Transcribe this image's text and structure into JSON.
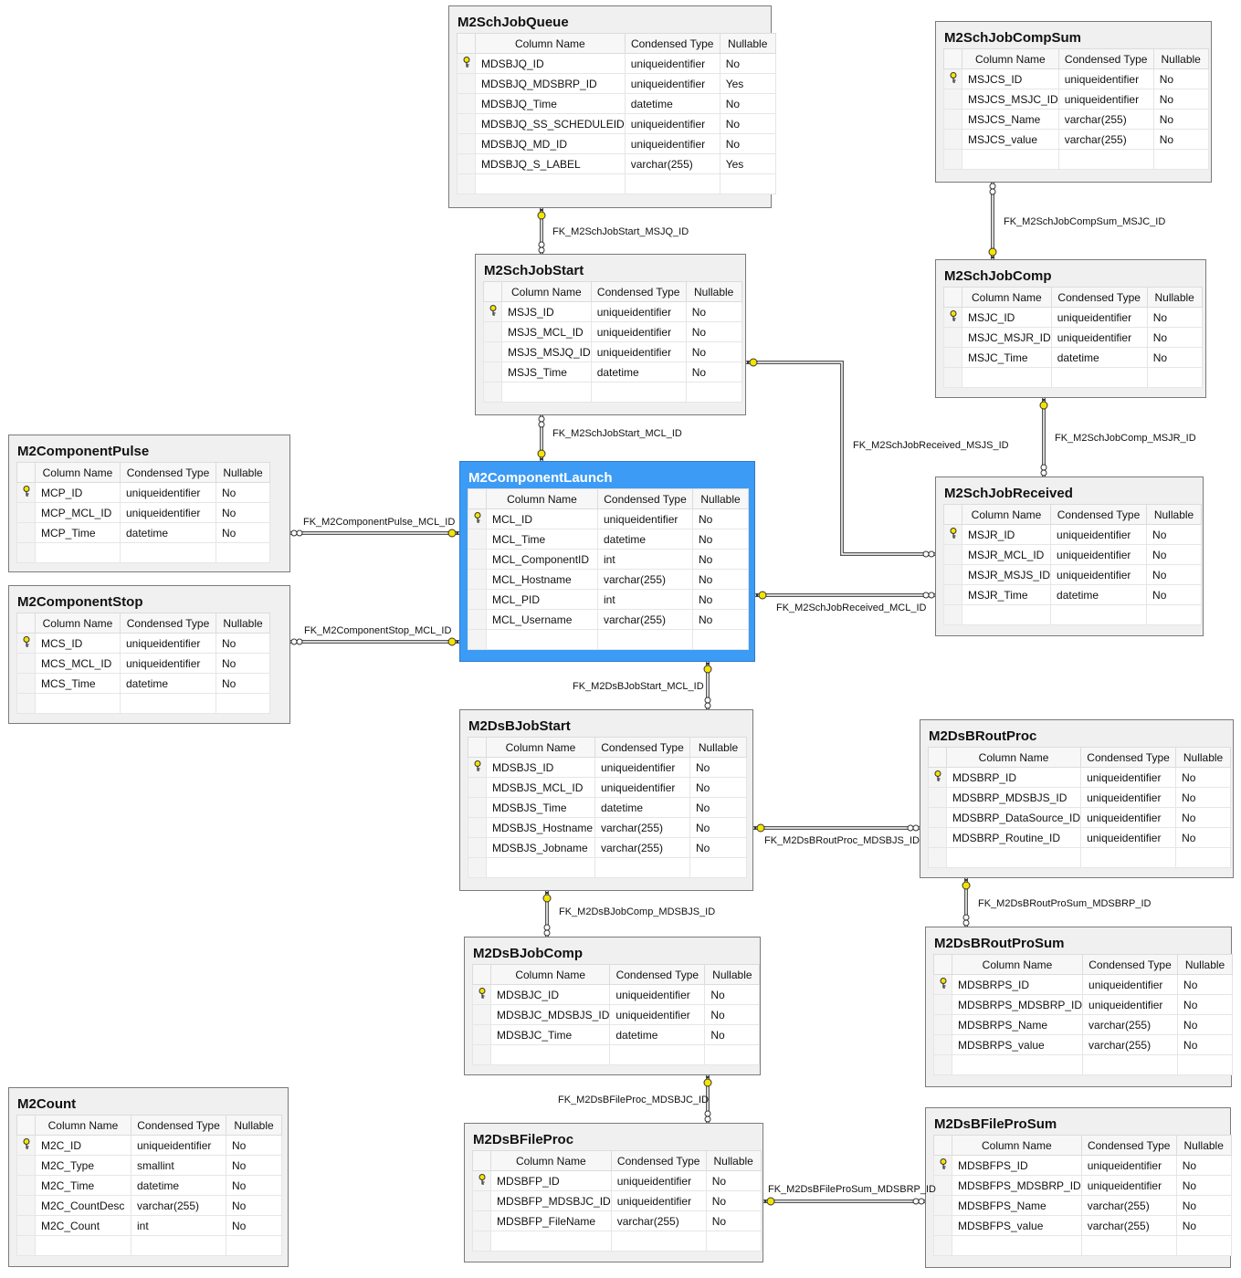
{
  "headers": [
    "Column Name",
    "Condensed Type",
    "Nullable"
  ],
  "colors": {
    "selected_table": "#3c9bf5",
    "key": "#f5e400"
  },
  "tables": [
    {
      "name": "M2SchJobQueue",
      "rows": [
        [
          "MDSBJQ_ID",
          "uniqueidentifier",
          "No",
          true
        ],
        [
          "MDSBJQ_MDSBRP_ID",
          "uniqueidentifier",
          "Yes",
          false
        ],
        [
          "MDSBJQ_Time",
          "datetime",
          "No",
          false
        ],
        [
          "MDSBJQ_SS_SCHEDULEID",
          "uniqueidentifier",
          "No",
          false
        ],
        [
          "MDSBJQ_MD_ID",
          "uniqueidentifier",
          "No",
          false
        ],
        [
          "MDSBJQ_S_LABEL",
          "varchar(255)",
          "Yes",
          false
        ]
      ]
    },
    {
      "name": "M2SchJobCompSum",
      "rows": [
        [
          "MSJCS_ID",
          "uniqueidentifier",
          "No",
          true
        ],
        [
          "MSJCS_MSJC_ID",
          "uniqueidentifier",
          "No",
          false
        ],
        [
          "MSJCS_Name",
          "varchar(255)",
          "No",
          false
        ],
        [
          "MSJCS_value",
          "varchar(255)",
          "No",
          false
        ]
      ]
    },
    {
      "name": "M2SchJobStart",
      "rows": [
        [
          "MSJS_ID",
          "uniqueidentifier",
          "No",
          true
        ],
        [
          "MSJS_MCL_ID",
          "uniqueidentifier",
          "No",
          false
        ],
        [
          "MSJS_MSJQ_ID",
          "uniqueidentifier",
          "No",
          false
        ],
        [
          "MSJS_Time",
          "datetime",
          "No",
          false
        ]
      ]
    },
    {
      "name": "M2SchJobComp",
      "rows": [
        [
          "MSJC_ID",
          "uniqueidentifier",
          "No",
          true
        ],
        [
          "MSJC_MSJR_ID",
          "uniqueidentifier",
          "No",
          false
        ],
        [
          "MSJC_Time",
          "datetime",
          "No",
          false
        ]
      ]
    },
    {
      "name": "M2ComponentPulse",
      "rows": [
        [
          "MCP_ID",
          "uniqueidentifier",
          "No",
          true
        ],
        [
          "MCP_MCL_ID",
          "uniqueidentifier",
          "No",
          false
        ],
        [
          "MCP_Time",
          "datetime",
          "No",
          false
        ]
      ]
    },
    {
      "name": "M2ComponentStop",
      "rows": [
        [
          "MCS_ID",
          "uniqueidentifier",
          "No",
          true
        ],
        [
          "MCS_MCL_ID",
          "uniqueidentifier",
          "No",
          false
        ],
        [
          "MCS_Time",
          "datetime",
          "No",
          false
        ]
      ]
    },
    {
      "name": "M2ComponentLaunch",
      "selected": true,
      "rows": [
        [
          "MCL_ID",
          "uniqueidentifier",
          "No",
          true
        ],
        [
          "MCL_Time",
          "datetime",
          "No",
          false
        ],
        [
          "MCL_ComponentID",
          "int",
          "No",
          false
        ],
        [
          "MCL_Hostname",
          "varchar(255)",
          "No",
          false
        ],
        [
          "MCL_PID",
          "int",
          "No",
          false
        ],
        [
          "MCL_Username",
          "varchar(255)",
          "No",
          false
        ]
      ]
    },
    {
      "name": "M2SchJobReceived",
      "rows": [
        [
          "MSJR_ID",
          "uniqueidentifier",
          "No",
          true
        ],
        [
          "MSJR_MCL_ID",
          "uniqueidentifier",
          "No",
          false
        ],
        [
          "MSJR_MSJS_ID",
          "uniqueidentifier",
          "No",
          false
        ],
        [
          "MSJR_Time",
          "datetime",
          "No",
          false
        ]
      ]
    },
    {
      "name": "M2DsBJobStart",
      "rows": [
        [
          "MDSBJS_ID",
          "uniqueidentifier",
          "No",
          true
        ],
        [
          "MDSBJS_MCL_ID",
          "uniqueidentifier",
          "No",
          false
        ],
        [
          "MDSBJS_Time",
          "datetime",
          "No",
          false
        ],
        [
          "MDSBJS_Hostname",
          "varchar(255)",
          "No",
          false
        ],
        [
          "MDSBJS_Jobname",
          "varchar(255)",
          "No",
          false
        ]
      ]
    },
    {
      "name": "M2DsBRoutProc",
      "rows": [
        [
          "MDSBRP_ID",
          "uniqueidentifier",
          "No",
          true
        ],
        [
          "MDSBRP_MDSBJS_ID",
          "uniqueidentifier",
          "No",
          false
        ],
        [
          "MDSBRP_DataSource_ID",
          "uniqueidentifier",
          "No",
          false
        ],
        [
          "MDSBRP_Routine_ID",
          "uniqueidentifier",
          "No",
          false
        ]
      ]
    },
    {
      "name": "M2DsBJobComp",
      "rows": [
        [
          "MDSBJC_ID",
          "uniqueidentifier",
          "No",
          true
        ],
        [
          "MDSBJC_MDSBJS_ID",
          "uniqueidentifier",
          "No",
          false
        ],
        [
          "MDSBJC_Time",
          "datetime",
          "No",
          false
        ]
      ]
    },
    {
      "name": "M2DsBRoutProSum",
      "rows": [
        [
          "MDSBRPS_ID",
          "uniqueidentifier",
          "No",
          true
        ],
        [
          "MDSBRPS_MDSBRP_ID",
          "uniqueidentifier",
          "No",
          false
        ],
        [
          "MDSBRPS_Name",
          "varchar(255)",
          "No",
          false
        ],
        [
          "MDSBRPS_value",
          "varchar(255)",
          "No",
          false
        ]
      ]
    },
    {
      "name": "M2Count",
      "rows": [
        [
          "M2C_ID",
          "uniqueidentifier",
          "No",
          true
        ],
        [
          "M2C_Type",
          "smallint",
          "No",
          false
        ],
        [
          "M2C_Time",
          "datetime",
          "No",
          false
        ],
        [
          "M2C_CountDesc",
          "varchar(255)",
          "No",
          false
        ],
        [
          "M2C_Count",
          "int",
          "No",
          false
        ]
      ]
    },
    {
      "name": "M2DsBFileProc",
      "rows": [
        [
          "MDSBFP_ID",
          "uniqueidentifier",
          "No",
          true
        ],
        [
          "MDSBFP_MDSBJC_ID",
          "uniqueidentifier",
          "No",
          false
        ],
        [
          "MDSBFP_FileName",
          "varchar(255)",
          "No",
          false
        ]
      ]
    },
    {
      "name": "M2DsBFileProSum",
      "rows": [
        [
          "MDSBFPS_ID",
          "uniqueidentifier",
          "No",
          true
        ],
        [
          "MDSBFPS_MDSBRP_ID",
          "uniqueidentifier",
          "No",
          false
        ],
        [
          "MDSBFPS_Name",
          "varchar(255)",
          "No",
          false
        ],
        [
          "MDSBFPS_value",
          "varchar(255)",
          "No",
          false
        ]
      ]
    }
  ],
  "relationships": [
    {
      "name": "FK_M2SchJobStart_MSJQ_ID",
      "primary": "M2SchJobQueue",
      "foreign": "M2SchJobStart"
    },
    {
      "name": "FK_M2SchJobCompSum_MSJC_ID",
      "primary": "M2SchJobComp",
      "foreign": "M2SchJobCompSum"
    },
    {
      "name": "FK_M2SchJobStart_MCL_ID",
      "primary": "M2ComponentLaunch",
      "foreign": "M2SchJobStart"
    },
    {
      "name": "FK_M2SchJobComp_MSJR_ID",
      "primary": "M2SchJobReceived",
      "foreign": "M2SchJobComp"
    },
    {
      "name": "FK_M2SchJobReceived_MSJS_ID",
      "primary": "M2SchJobStart",
      "foreign": "M2SchJobReceived"
    },
    {
      "name": "FK_M2ComponentPulse_MCL_ID",
      "primary": "M2ComponentLaunch",
      "foreign": "M2ComponentPulse"
    },
    {
      "name": "FK_M2ComponentStop_MCL_ID",
      "primary": "M2ComponentLaunch",
      "foreign": "M2ComponentStop"
    },
    {
      "name": "FK_M2SchJobReceived_MCL_ID",
      "primary": "M2ComponentLaunch",
      "foreign": "M2SchJobReceived"
    },
    {
      "name": "FK_M2DsBJobStart_MCL_ID",
      "primary": "M2ComponentLaunch",
      "foreign": "M2DsBJobStart"
    },
    {
      "name": "FK_M2DsBRoutProc_MDSBJS_ID",
      "primary": "M2DsBJobStart",
      "foreign": "M2DsBRoutProc"
    },
    {
      "name": "FK_M2DsBJobComp_MDSBJS_ID",
      "primary": "M2DsBJobStart",
      "foreign": "M2DsBJobComp"
    },
    {
      "name": "FK_M2DsBRoutProSum_MDSBRP_ID",
      "primary": "M2DsBRoutProc",
      "foreign": "M2DsBRoutProSum"
    },
    {
      "name": "FK_M2DsBFileProc_MDSBJC_ID",
      "primary": "M2DsBJobComp",
      "foreign": "M2DsBFileProc"
    },
    {
      "name": "FK_M2DsBFileProSum_MDSBRP_ID",
      "primary": "M2DsBFileProc",
      "foreign": "M2DsBFileProSum"
    }
  ]
}
